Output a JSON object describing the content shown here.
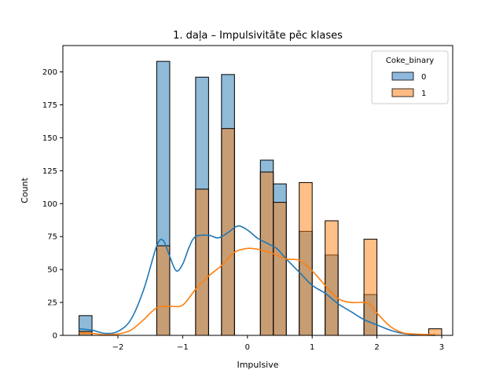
{
  "chart_data": {
    "type": "histogram",
    "title": "1. daļa – Impulsivitāte pēc klases",
    "xlabel": "Impulsive",
    "ylabel": "Count",
    "xlim": [
      -2.85,
      3.17
    ],
    "ylim": [
      0,
      220
    ],
    "xticks": [
      -2,
      -1,
      0,
      1,
      2,
      3
    ],
    "xtick_labels": [
      "−2",
      "−1",
      "0",
      "1",
      "2",
      "3"
    ],
    "yticks": [
      0,
      25,
      50,
      75,
      100,
      125,
      150,
      175,
      200
    ],
    "ytick_labels": [
      "0",
      "25",
      "50",
      "75",
      "100",
      "125",
      "150",
      "175",
      "200"
    ],
    "bin_edges": [
      -2.6,
      -2.4,
      -2.2,
      -2.0,
      -1.8,
      -1.6,
      -1.4,
      -1.2,
      -1.0,
      -0.8,
      -0.6,
      -0.4,
      -0.2,
      0.0,
      0.2,
      0.4,
      0.6,
      0.8,
      1.0,
      1.2,
      1.4,
      1.6,
      1.8,
      2.0,
      2.2,
      2.4,
      2.6,
      2.8,
      3.0
    ],
    "grid": false,
    "legend": {
      "title": "Coke_binary",
      "position": "top-right",
      "entries": [
        "0",
        "1"
      ]
    },
    "series": [
      {
        "name": "0",
        "color": "#1f77b4",
        "fill_color": "#8fb8dc",
        "counts": [
          15,
          0,
          0,
          0,
          0,
          0,
          208,
          0,
          0,
          196,
          0,
          198,
          0,
          0,
          133,
          115,
          0,
          79,
          0,
          61,
          0,
          0,
          31,
          0,
          0,
          0,
          0,
          0
        ],
        "kde": [
          [
            -2.6,
            5
          ],
          [
            -2.4,
            4
          ],
          [
            -2.2,
            1.5
          ],
          [
            -2.0,
            3
          ],
          [
            -1.8,
            12
          ],
          [
            -1.6,
            35
          ],
          [
            -1.4,
            68
          ],
          [
            -1.3,
            72
          ],
          [
            -1.2,
            60
          ],
          [
            -1.1,
            49
          ],
          [
            -1.0,
            54
          ],
          [
            -0.9,
            67
          ],
          [
            -0.8,
            75
          ],
          [
            -0.6,
            76
          ],
          [
            -0.45,
            74
          ],
          [
            -0.3,
            78
          ],
          [
            -0.15,
            83
          ],
          [
            0.0,
            80
          ],
          [
            0.15,
            74
          ],
          [
            0.3,
            70
          ],
          [
            0.45,
            66
          ],
          [
            0.6,
            58
          ],
          [
            0.8,
            48
          ],
          [
            1.0,
            38
          ],
          [
            1.2,
            32
          ],
          [
            1.4,
            24
          ],
          [
            1.6,
            18
          ],
          [
            1.8,
            12
          ],
          [
            2.0,
            8
          ],
          [
            2.2,
            4
          ],
          [
            2.4,
            1.5
          ],
          [
            2.6,
            0.5
          ],
          [
            2.9,
            0
          ]
        ]
      },
      {
        "name": "1",
        "color": "#ff7f0e",
        "fill_color": "#ffbb84",
        "counts": [
          3,
          0,
          0,
          0,
          0,
          0,
          68,
          0,
          0,
          111,
          0,
          157,
          0,
          0,
          124,
          101,
          0,
          116,
          0,
          87,
          0,
          0,
          73,
          0,
          0,
          0,
          0,
          5
        ],
        "kde": [
          [
            -2.6,
            2
          ],
          [
            -2.4,
            1.5
          ],
          [
            -2.2,
            0.5
          ],
          [
            -2.0,
            1
          ],
          [
            -1.8,
            4
          ],
          [
            -1.6,
            12
          ],
          [
            -1.4,
            21
          ],
          [
            -1.2,
            22
          ],
          [
            -1.0,
            23
          ],
          [
            -0.8,
            35
          ],
          [
            -0.6,
            45
          ],
          [
            -0.4,
            53
          ],
          [
            -0.2,
            63
          ],
          [
            0.0,
            66
          ],
          [
            0.2,
            65
          ],
          [
            0.4,
            62
          ],
          [
            0.6,
            58
          ],
          [
            0.8,
            57
          ],
          [
            1.0,
            49
          ],
          [
            1.2,
            38
          ],
          [
            1.4,
            28
          ],
          [
            1.6,
            25
          ],
          [
            1.8,
            25
          ],
          [
            1.9,
            23
          ],
          [
            2.0,
            17
          ],
          [
            2.2,
            7
          ],
          [
            2.4,
            2
          ],
          [
            2.6,
            1
          ],
          [
            2.9,
            0.5
          ]
        ]
      }
    ]
  }
}
